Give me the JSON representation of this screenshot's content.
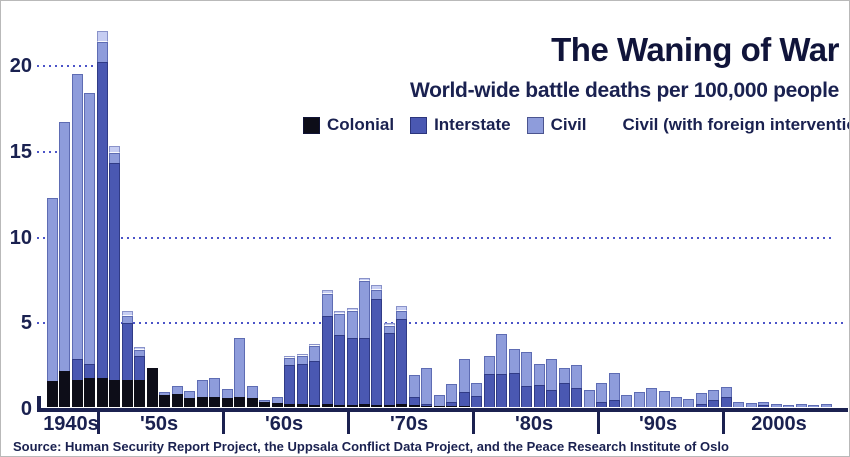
{
  "title": "The Waning of War",
  "subtitle": "World-wide battle deaths per 100,000 people",
  "source": "Source: Human Security Report Project, the Uppsala Conflict Data Project, and the Peace Research Institute of Oslo",
  "colors": {
    "colonial": "#0d0d18",
    "interstate": "#4a58b2",
    "civil": "#8e9cdb",
    "civil_foreign": "#c6cdf2",
    "axis_text": "#1a2150",
    "title_text": "#10143a",
    "gridline": "#4b54c8"
  },
  "legend": {
    "items": [
      {
        "label": "Colonial",
        "series_key": "colonial",
        "swatch": true
      },
      {
        "label": "Interstate",
        "series_key": "interstate",
        "swatch": true
      },
      {
        "label": "Civil",
        "series_key": "civil",
        "swatch": true
      },
      {
        "label": "Civil (with foreign intervention)",
        "series_key": "civil_foreign",
        "swatch": false
      }
    ]
  },
  "chart_data": {
    "type": "bar",
    "stacked": true,
    "title": "The Waning of War",
    "subtitle": "World-wide battle deaths per 100,000 people",
    "ylabel": "battle deaths per 100,000 people",
    "grid": "dotted horizontal lines at 5, 10, 15, 20; lines at 15 and 20 are short stubs near the axis",
    "legend_position": "top",
    "ylim": [
      0,
      22
    ],
    "x": [
      1946,
      1947,
      1948,
      1949,
      1950,
      1951,
      1952,
      1953,
      1954,
      1955,
      1956,
      1957,
      1958,
      1959,
      1960,
      1961,
      1962,
      1963,
      1964,
      1965,
      1966,
      1967,
      1968,
      1969,
      1970,
      1971,
      1972,
      1973,
      1974,
      1975,
      1976,
      1977,
      1978,
      1979,
      1980,
      1981,
      1982,
      1983,
      1984,
      1985,
      1986,
      1987,
      1988,
      1989,
      1990,
      1991,
      1992,
      1993,
      1994,
      1995,
      1996,
      1997,
      1998,
      1999,
      2000,
      2001,
      2002,
      2003,
      2004,
      2005,
      2006,
      2007,
      2008
    ],
    "series": [
      {
        "name": "Colonial",
        "key": "colonial",
        "values": [
          1.5,
          2.1,
          1.6,
          1.7,
          1.7,
          1.6,
          1.6,
          1.6,
          2.3,
          0.7,
          0.75,
          0.55,
          0.6,
          0.6,
          0.55,
          0.6,
          0.5,
          0.3,
          0.25,
          0.2,
          0.15,
          0.1,
          0.15,
          0.1,
          0.1,
          0.15,
          0.1,
          0.1,
          0.15,
          0.1,
          0.05,
          0.05,
          0.05,
          0.05,
          0,
          0,
          0,
          0,
          0,
          0,
          0,
          0,
          0,
          0,
          0,
          0,
          0,
          0,
          0,
          0,
          0,
          0,
          0,
          0,
          0,
          0,
          0,
          0,
          0,
          0,
          0,
          0,
          0
        ]
      },
      {
        "name": "Interstate",
        "key": "interstate",
        "values": [
          0,
          0,
          1.2,
          0.8,
          18.4,
          12.6,
          3.3,
          1.4,
          0,
          0,
          0,
          0,
          0,
          0,
          0,
          0,
          0,
          0,
          0,
          2.25,
          2.35,
          2.6,
          5.15,
          4.1,
          3.9,
          3.9,
          6.2,
          4.2,
          5.0,
          0.5,
          0.15,
          0,
          0.25,
          0.85,
          0.65,
          1.9,
          1.9,
          2.0,
          1.2,
          1.3,
          1.0,
          1.4,
          1.1,
          0,
          0.3,
          0.4,
          0,
          0,
          0,
          0,
          0,
          0,
          0.2,
          0.4,
          0.6,
          0,
          0,
          0.1,
          0,
          0,
          0,
          0,
          0
        ]
      },
      {
        "name": "Civil",
        "key": "civil",
        "values": [
          10.7,
          14.5,
          16.6,
          15.8,
          1.2,
          0.6,
          0.4,
          0.3,
          0,
          0.15,
          0.45,
          0.4,
          1.0,
          1.1,
          0.5,
          3.4,
          0.7,
          0.1,
          0.35,
          0.4,
          0.45,
          0.85,
          1.3,
          1.25,
          1.6,
          3.3,
          0.5,
          0.45,
          0.45,
          1.25,
          2.1,
          0.65,
          1.05,
          1.9,
          0.75,
          1.1,
          2.35,
          1.4,
          2.0,
          1.2,
          1.8,
          0.9,
          1.35,
          1.0,
          1.1,
          1.6,
          0.7,
          0.85,
          1.1,
          0.95,
          0.6,
          0.45,
          0.6,
          0.6,
          0.55,
          0.3,
          0.25,
          0.2,
          0.17,
          0.12,
          0.15,
          0.1,
          0.16
        ]
      },
      {
        "name": "Civil (with foreign intervention)",
        "key": "civil_foreign",
        "values": [
          0,
          0,
          0,
          0,
          0.6,
          0.4,
          0.3,
          0.2,
          0,
          0,
          0,
          0,
          0,
          0,
          0,
          0,
          0,
          0,
          0,
          0.15,
          0.15,
          0.15,
          0.2,
          0.15,
          0.2,
          0.2,
          0.3,
          0.15,
          0.3,
          0,
          0,
          0,
          0,
          0,
          0,
          0,
          0,
          0,
          0,
          0,
          0,
          0,
          0,
          0,
          0,
          0,
          0,
          0,
          0,
          0,
          0,
          0,
          0,
          0,
          0,
          0,
          0,
          0,
          0,
          0,
          0,
          0,
          0
        ]
      }
    ],
    "x_axis": {
      "labels": [
        "1940s",
        "'50s",
        "'60s",
        "'70s",
        "'80s",
        "'90s",
        "2000s"
      ]
    },
    "y_axis": {
      "ticks": [
        0,
        5,
        10,
        15,
        20
      ]
    }
  }
}
